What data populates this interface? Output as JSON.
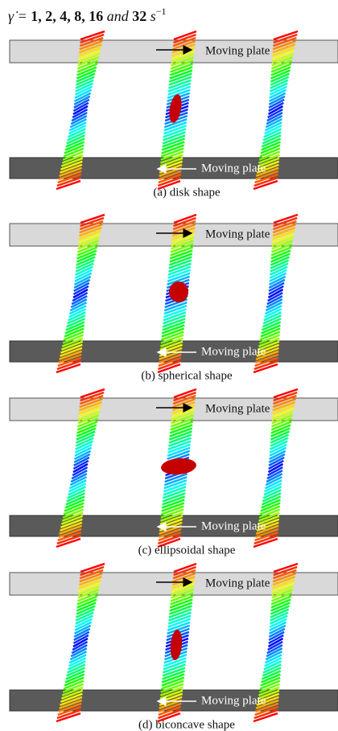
{
  "header": {
    "lhs": "γ̇ =",
    "rates": "1, 2, 4, 8, 16",
    "conj": "and",
    "last": "32",
    "unit": "s",
    "exponent": "−1"
  },
  "panels": [
    {
      "top_label": "Moving plate",
      "bottom_label": "Moving plate",
      "caption": "(a) disk shape"
    },
    {
      "top_label": "Moving plate",
      "bottom_label": "Moving plate",
      "caption": "(b) spherical shape"
    },
    {
      "top_label": "Moving plate",
      "bottom_label": "Moving plate",
      "caption": "(c) ellipsoidal shape"
    },
    {
      "top_label": "Moving plate",
      "bottom_label": "Moving plate",
      "caption": "(d) biconcave shape"
    }
  ]
}
